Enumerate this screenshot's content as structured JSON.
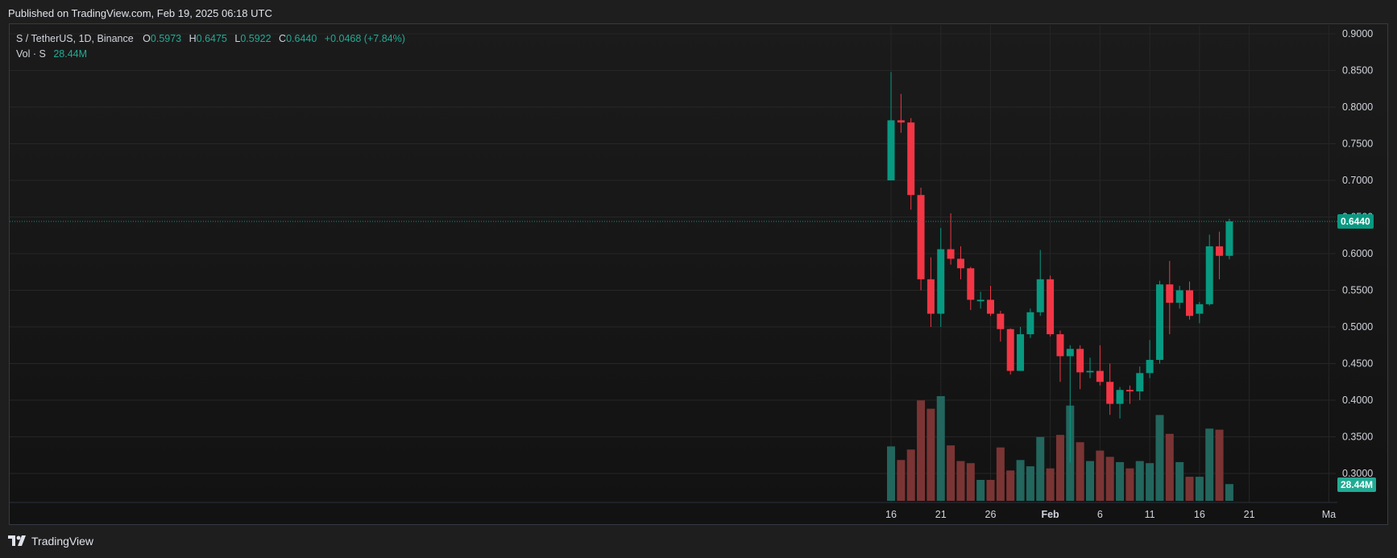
{
  "header": {
    "published": "Published on TradingView.com, Feb 19, 2025 06:18 UTC"
  },
  "legend": {
    "symbol": "S / TetherUS, 1D, Binance",
    "open_label": "O",
    "open": "0.5973",
    "high_label": "H",
    "high": "0.6475",
    "low_label": "L",
    "low": "0.5922",
    "close_label": "C",
    "close": "0.6440",
    "change": "+0.0468 (+7.84%)",
    "vol_label": "Vol · S",
    "vol_value": "28.44M"
  },
  "footer": {
    "brand": "TradingView"
  },
  "colors": {
    "up": "#089981",
    "down": "#f23645",
    "vol_up": "#22665e",
    "vol_down": "#7a3434",
    "grid": "#262626",
    "axis_text": "#d1d4dc"
  },
  "chart_data": {
    "type": "candlestick",
    "y_axis": {
      "min": 0.3,
      "max": 0.9,
      "ticks": [
        "0.9000",
        "0.8500",
        "0.8000",
        "0.7500",
        "0.7000",
        "0.6500",
        "0.6000",
        "0.5500",
        "0.5000",
        "0.4500",
        "0.4000",
        "0.3500",
        "0.3000"
      ]
    },
    "x_ticks": [
      {
        "label": "16",
        "day": 0
      },
      {
        "label": "21",
        "day": 5
      },
      {
        "label": "26",
        "day": 10
      },
      {
        "label": "Feb",
        "day": 16
      },
      {
        "label": "6",
        "day": 21
      },
      {
        "label": "11",
        "day": 26
      },
      {
        "label": "16",
        "day": 31
      },
      {
        "label": "21",
        "day": 36
      },
      {
        "label": "Ma",
        "day": 44
      }
    ],
    "last_price_label": "0.6440",
    "last_price": 0.644,
    "last_volume_label": "28.44M",
    "candles": [
      {
        "date": "2025-01-16",
        "o": 0.7,
        "h": 0.848,
        "l": 0.7,
        "c": 0.782,
        "v": 0.52
      },
      {
        "date": "2025-01-17",
        "o": 0.782,
        "h": 0.818,
        "l": 0.765,
        "c": 0.779,
        "v": 0.39
      },
      {
        "date": "2025-01-18",
        "o": 0.779,
        "h": 0.785,
        "l": 0.66,
        "c": 0.68,
        "v": 0.49
      },
      {
        "date": "2025-01-19",
        "o": 0.68,
        "h": 0.69,
        "l": 0.55,
        "c": 0.565,
        "v": 0.96
      },
      {
        "date": "2025-01-20",
        "o": 0.565,
        "h": 0.595,
        "l": 0.5,
        "c": 0.518,
        "v": 0.88
      },
      {
        "date": "2025-01-21",
        "o": 0.518,
        "h": 0.635,
        "l": 0.5,
        "c": 0.606,
        "v": 1.0
      },
      {
        "date": "2025-01-22",
        "o": 0.606,
        "h": 0.655,
        "l": 0.585,
        "c": 0.593,
        "v": 0.53
      },
      {
        "date": "2025-01-23",
        "o": 0.593,
        "h": 0.61,
        "l": 0.565,
        "c": 0.58,
        "v": 0.38
      },
      {
        "date": "2025-01-24",
        "o": 0.58,
        "h": 0.582,
        "l": 0.523,
        "c": 0.537,
        "v": 0.36
      },
      {
        "date": "2025-01-25",
        "o": 0.535,
        "h": 0.548,
        "l": 0.525,
        "c": 0.537,
        "v": 0.2
      },
      {
        "date": "2025-01-26",
        "o": 0.537,
        "h": 0.556,
        "l": 0.515,
        "c": 0.518,
        "v": 0.2
      },
      {
        "date": "2025-01-27",
        "o": 0.518,
        "h": 0.522,
        "l": 0.48,
        "c": 0.497,
        "v": 0.51
      },
      {
        "date": "2025-01-28",
        "o": 0.497,
        "h": 0.498,
        "l": 0.435,
        "c": 0.44,
        "v": 0.29
      },
      {
        "date": "2025-01-29",
        "o": 0.44,
        "h": 0.5,
        "l": 0.44,
        "c": 0.49,
        "v": 0.39
      },
      {
        "date": "2025-01-30",
        "o": 0.49,
        "h": 0.525,
        "l": 0.485,
        "c": 0.52,
        "v": 0.33
      },
      {
        "date": "2025-01-31",
        "o": 0.52,
        "h": 0.605,
        "l": 0.515,
        "c": 0.565,
        "v": 0.61
      },
      {
        "date": "2025-02-01",
        "o": 0.565,
        "h": 0.57,
        "l": 0.487,
        "c": 0.49,
        "v": 0.31
      },
      {
        "date": "2025-02-02",
        "o": 0.49,
        "h": 0.495,
        "l": 0.425,
        "c": 0.46,
        "v": 0.63
      },
      {
        "date": "2025-02-03",
        "o": 0.46,
        "h": 0.475,
        "l": 0.315,
        "c": 0.47,
        "v": 0.91
      },
      {
        "date": "2025-02-04",
        "o": 0.47,
        "h": 0.475,
        "l": 0.415,
        "c": 0.438,
        "v": 0.56
      },
      {
        "date": "2025-02-05",
        "o": 0.438,
        "h": 0.458,
        "l": 0.43,
        "c": 0.44,
        "v": 0.38
      },
      {
        "date": "2025-02-06",
        "o": 0.44,
        "h": 0.475,
        "l": 0.42,
        "c": 0.425,
        "v": 0.48
      },
      {
        "date": "2025-02-07",
        "o": 0.425,
        "h": 0.45,
        "l": 0.38,
        "c": 0.395,
        "v": 0.42
      },
      {
        "date": "2025-02-08",
        "o": 0.395,
        "h": 0.418,
        "l": 0.375,
        "c": 0.414,
        "v": 0.37
      },
      {
        "date": "2025-02-09",
        "o": 0.414,
        "h": 0.42,
        "l": 0.395,
        "c": 0.412,
        "v": 0.31
      },
      {
        "date": "2025-02-10",
        "o": 0.412,
        "h": 0.446,
        "l": 0.4,
        "c": 0.437,
        "v": 0.38
      },
      {
        "date": "2025-02-11",
        "o": 0.437,
        "h": 0.482,
        "l": 0.43,
        "c": 0.455,
        "v": 0.36
      },
      {
        "date": "2025-02-12",
        "o": 0.455,
        "h": 0.563,
        "l": 0.45,
        "c": 0.558,
        "v": 0.82
      },
      {
        "date": "2025-02-13",
        "o": 0.558,
        "h": 0.59,
        "l": 0.49,
        "c": 0.533,
        "v": 0.64
      },
      {
        "date": "2025-02-14",
        "o": 0.533,
        "h": 0.556,
        "l": 0.525,
        "c": 0.55,
        "v": 0.37
      },
      {
        "date": "2025-02-15",
        "o": 0.55,
        "h": 0.562,
        "l": 0.51,
        "c": 0.515,
        "v": 0.23
      },
      {
        "date": "2025-02-16",
        "o": 0.518,
        "h": 0.534,
        "l": 0.505,
        "c": 0.531,
        "v": 0.23
      },
      {
        "date": "2025-02-17",
        "o": 0.531,
        "h": 0.626,
        "l": 0.529,
        "c": 0.61,
        "v": 0.69
      },
      {
        "date": "2025-02-18",
        "o": 0.61,
        "h": 0.63,
        "l": 0.565,
        "c": 0.597,
        "v": 0.68
      },
      {
        "date": "2025-02-19",
        "o": 0.597,
        "h": 0.6475,
        "l": 0.5922,
        "c": 0.644,
        "v": 0.16
      }
    ]
  }
}
